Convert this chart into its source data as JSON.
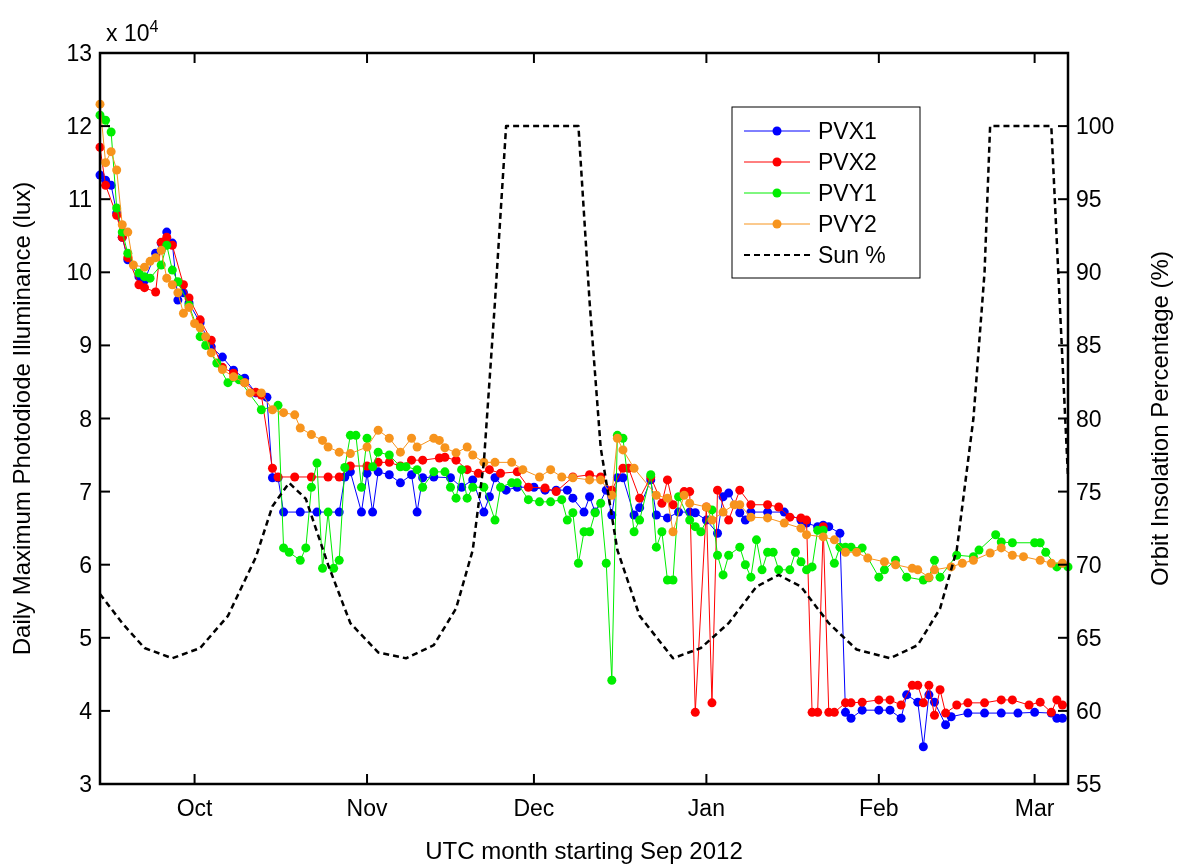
{
  "chart_data": {
    "type": "line",
    "xlabel": "UTC month starting Sep 2012",
    "ylabel": "Daily Maximum Photodiode Illuminance (lux)",
    "y2label": "Orbit Insolation Percentage (%)",
    "annotations": [
      "x 10$^{4}$"
    ],
    "xlim": [
      "2012-09-14",
      "2013-03-07"
    ],
    "xticks": [
      {
        "value": "2012-10-01",
        "label": "Oct"
      },
      {
        "value": "2012-11-01",
        "label": "Nov"
      },
      {
        "value": "2012-12-01",
        "label": "Dec"
      },
      {
        "value": "2013-01-01",
        "label": "Jan"
      },
      {
        "value": "2013-02-01",
        "label": "Feb"
      },
      {
        "value": "2013-03-01",
        "label": "Mar"
      }
    ],
    "ylim": [
      3,
      13
    ],
    "yticks": [
      3,
      4,
      5,
      6,
      7,
      8,
      9,
      10,
      11,
      12,
      13
    ],
    "y2lim": [
      55,
      105
    ],
    "y2ticks": [
      55,
      60,
      65,
      70,
      75,
      80,
      85,
      90,
      95,
      100
    ],
    "marker": "circle",
    "legend": "top right",
    "series": [
      {
        "name": "PVX1",
        "color": "#0000ff",
        "x": [
          "2012-09-14",
          "2012-09-15",
          "2012-09-16",
          "2012-09-17",
          "2012-09-18",
          "2012-09-19",
          "2012-09-21",
          "2012-09-22",
          "2012-09-24",
          "2012-09-25",
          "2012-09-26",
          "2012-09-27",
          "2012-09-28",
          "2012-09-29",
          "2012-09-30",
          "2012-10-02",
          "2012-10-04",
          "2012-10-06",
          "2012-10-08",
          "2012-10-10",
          "2012-10-12",
          "2012-10-14",
          "2012-10-15",
          "2012-10-16",
          "2012-10-17",
          "2012-10-20",
          "2012-10-23",
          "2012-10-27",
          "2012-10-28",
          "2012-10-29",
          "2012-10-31",
          "2012-11-01",
          "2012-11-02",
          "2012-11-03",
          "2012-11-05",
          "2012-11-07",
          "2012-11-09",
          "2012-11-10",
          "2012-11-11",
          "2012-11-13",
          "2012-11-16",
          "2012-11-18",
          "2012-11-20",
          "2012-11-22",
          "2012-11-23",
          "2012-11-24",
          "2012-11-26",
          "2012-11-28",
          "2012-12-01",
          "2012-12-03",
          "2012-12-05",
          "2012-12-07",
          "2012-12-08",
          "2012-12-10",
          "2012-12-11",
          "2012-12-12",
          "2012-12-14",
          "2012-12-15",
          "2012-12-16",
          "2012-12-17",
          "2012-12-19",
          "2012-12-20",
          "2012-12-22",
          "2012-12-23",
          "2012-12-25",
          "2012-12-27",
          "2012-12-29",
          "2012-12-30",
          "2013-01-01",
          "2013-01-03",
          "2013-01-04",
          "2013-01-05",
          "2013-01-07",
          "2013-01-08",
          "2013-01-09",
          "2013-01-12",
          "2013-01-15",
          "2013-01-18",
          "2013-01-19",
          "2013-01-21",
          "2013-01-22",
          "2013-01-23",
          "2013-01-25",
          "2013-01-26",
          "2013-01-27",
          "2013-01-29",
          "2013-02-01",
          "2013-02-03",
          "2013-02-05",
          "2013-02-06",
          "2013-02-08",
          "2013-02-09",
          "2013-02-10",
          "2013-02-11",
          "2013-02-13",
          "2013-02-14",
          "2013-02-17",
          "2013-02-20",
          "2013-02-23",
          "2013-02-26",
          "2013-03-01",
          "2013-03-04",
          "2013-03-05",
          "2013-03-06"
        ],
        "values": [
          11.33,
          11.26,
          11.19,
          10.81,
          10.48,
          10.17,
          9.94,
          9.89,
          10.26,
          10.4,
          10.55,
          10.4,
          9.62,
          9.72,
          9.58,
          9.31,
          8.98,
          8.84,
          8.66,
          8.55,
          8.35,
          8.29,
          7.19,
          7.19,
          6.72,
          6.72,
          6.72,
          6.72,
          7.2,
          7.27,
          6.72,
          7.25,
          6.72,
          7.27,
          7.23,
          7.12,
          7.23,
          6.72,
          7.19,
          7.2,
          7.19,
          7.06,
          7.16,
          6.72,
          6.93,
          7.19,
          7.02,
          7.06,
          7.06,
          7.02,
          7.02,
          7.02,
          6.91,
          6.72,
          6.93,
          6.72,
          7.02,
          6.68,
          7.19,
          7.19,
          6.68,
          6.78,
          7.16,
          6.68,
          6.64,
          6.72,
          6.72,
          6.71,
          6.61,
          6.43,
          6.93,
          6.98,
          6.71,
          6.61,
          6.72,
          6.72,
          6.72,
          6.61,
          6.57,
          6.52,
          6.54,
          6.52,
          6.43,
          3.98,
          3.9,
          4.01,
          4.01,
          4.01,
          3.9,
          4.22,
          4.12,
          3.51,
          4.22,
          4.12,
          3.81,
          3.92,
          3.97,
          3.97,
          3.97,
          3.97,
          3.98,
          3.97,
          3.9,
          3.9
        ]
      },
      {
        "name": "PVX2",
        "color": "#ff0000",
        "x": [
          "2012-09-14",
          "2012-09-15",
          "2012-09-17",
          "2012-09-18",
          "2012-09-19",
          "2012-09-21",
          "2012-09-22",
          "2012-09-24",
          "2012-09-25",
          "2012-09-26",
          "2012-09-27",
          "2012-09-29",
          "2012-09-30",
          "2012-10-02",
          "2012-10-04",
          "2012-10-06",
          "2012-10-08",
          "2012-10-10",
          "2012-10-12",
          "2012-10-13",
          "2012-10-15",
          "2012-10-16",
          "2012-10-19",
          "2012-10-22",
          "2012-10-25",
          "2012-10-27",
          "2012-10-29",
          "2012-11-01",
          "2012-11-03",
          "2012-11-05",
          "2012-11-07",
          "2012-11-09",
          "2012-11-11",
          "2012-11-14",
          "2012-11-15",
          "2012-11-17",
          "2012-11-19",
          "2012-11-21",
          "2012-11-23",
          "2012-11-25",
          "2012-11-28",
          "2012-11-30",
          "2012-12-03",
          "2012-12-05",
          "2012-12-08",
          "2012-12-11",
          "2012-12-13",
          "2012-12-15",
          "2012-12-17",
          "2012-12-18",
          "2012-12-20",
          "2012-12-22",
          "2012-12-24",
          "2012-12-25",
          "2012-12-26",
          "2012-12-28",
          "2012-12-29",
          "2012-12-30",
          "2013-01-01",
          "2013-01-02",
          "2013-01-03",
          "2013-01-05",
          "2013-01-07",
          "2013-01-09",
          "2013-01-12",
          "2013-01-14",
          "2013-01-16",
          "2013-01-18",
          "2013-01-19",
          "2013-01-20",
          "2013-01-21",
          "2013-01-22",
          "2013-01-23",
          "2013-01-24",
          "2013-01-26",
          "2013-01-27",
          "2013-01-29",
          "2013-02-01",
          "2013-02-03",
          "2013-02-05",
          "2013-02-07",
          "2013-02-08",
          "2013-02-09",
          "2013-02-10",
          "2013-02-11",
          "2013-02-12",
          "2013-02-13",
          "2013-02-15",
          "2013-02-17",
          "2013-02-20",
          "2013-02-23",
          "2013-02-25",
          "2013-02-28",
          "2013-03-02",
          "2013-03-04",
          "2013-03-05",
          "2013-03-06"
        ],
        "values": [
          11.71,
          11.19,
          10.78,
          10.48,
          10.2,
          9.83,
          9.79,
          9.73,
          10.41,
          10.48,
          10.37,
          9.83,
          9.65,
          9.35,
          9.07,
          8.7,
          8.62,
          8.49,
          8.36,
          8.32,
          7.32,
          7.2,
          7.2,
          7.2,
          7.2,
          7.2,
          7.35,
          7.35,
          7.4,
          7.4,
          7.35,
          7.43,
          7.43,
          7.46,
          7.47,
          7.43,
          7.3,
          7.25,
          7.3,
          7.25,
          7.27,
          7.06,
          7.05,
          7.0,
          7.2,
          7.23,
          7.2,
          7.02,
          7.32,
          7.32,
          6.91,
          7.2,
          6.84,
          7.16,
          6.82,
          7.0,
          7.0,
          3.98,
          6.79,
          4.11,
          7.02,
          6.61,
          7.02,
          6.82,
          6.82,
          6.79,
          6.65,
          6.64,
          6.61,
          3.98,
          3.98,
          6.52,
          3.98,
          3.98,
          4.11,
          4.11,
          4.12,
          4.15,
          4.15,
          4.08,
          4.35,
          4.35,
          4.11,
          4.35,
          3.94,
          4.29,
          3.97,
          4.08,
          4.11,
          4.11,
          4.15,
          4.15,
          4.08,
          4.12,
          3.98,
          4.15,
          4.08
        ]
      },
      {
        "name": "PVY1",
        "color": "#00ee00",
        "x": [
          "2012-09-14",
          "2012-09-15",
          "2012-09-16",
          "2012-09-17",
          "2012-09-18",
          "2012-09-19",
          "2012-09-21",
          "2012-09-22",
          "2012-09-23",
          "2012-09-25",
          "2012-09-26",
          "2012-09-27",
          "2012-09-28",
          "2012-09-30",
          "2012-10-02",
          "2012-10-03",
          "2012-10-05",
          "2012-10-07",
          "2012-10-09",
          "2012-10-13",
          "2012-10-16",
          "2012-10-17",
          "2012-10-18",
          "2012-10-20",
          "2012-10-21",
          "2012-10-22",
          "2012-10-23",
          "2012-10-24",
          "2012-10-25",
          "2012-10-26",
          "2012-10-27",
          "2012-10-28",
          "2012-10-29",
          "2012-10-30",
          "2012-10-31",
          "2012-11-01",
          "2012-11-02",
          "2012-11-03",
          "2012-11-05",
          "2012-11-07",
          "2012-11-08",
          "2012-11-10",
          "2012-11-11",
          "2012-11-13",
          "2012-11-15",
          "2012-11-16",
          "2012-11-17",
          "2012-11-18",
          "2012-11-19",
          "2012-11-20",
          "2012-11-22",
          "2012-11-24",
          "2012-11-25",
          "2012-11-27",
          "2012-11-28",
          "2012-11-30",
          "2012-12-02",
          "2012-12-04",
          "2012-12-06",
          "2012-12-07",
          "2012-12-08",
          "2012-12-09",
          "2012-12-10",
          "2012-12-11",
          "2012-12-12",
          "2012-12-13",
          "2012-12-14",
          "2012-12-15",
          "2012-12-16",
          "2012-12-17",
          "2012-12-19",
          "2012-12-20",
          "2012-12-22",
          "2012-12-23",
          "2012-12-24",
          "2012-12-25",
          "2012-12-26",
          "2012-12-27",
          "2012-12-29",
          "2012-12-30",
          "2012-12-31",
          "2013-01-02",
          "2013-01-03",
          "2013-01-04",
          "2013-01-05",
          "2013-01-07",
          "2013-01-08",
          "2013-01-09",
          "2013-01-10",
          "2013-01-11",
          "2013-01-12",
          "2013-01-13",
          "2013-01-14",
          "2013-01-16",
          "2013-01-17",
          "2013-01-18",
          "2013-01-19",
          "2013-01-20",
          "2013-01-21",
          "2013-01-22",
          "2013-01-24",
          "2013-01-25",
          "2013-01-26",
          "2013-01-27",
          "2013-01-29",
          "2013-02-01",
          "2013-02-02",
          "2013-02-04",
          "2013-02-06",
          "2013-02-09",
          "2013-02-10",
          "2013-02-11",
          "2013-02-12",
          "2013-02-15",
          "2013-02-18",
          "2013-02-19",
          "2013-02-22",
          "2013-02-23",
          "2013-02-25",
          "2013-03-01",
          "2013-03-02",
          "2013-03-03",
          "2013-03-05",
          "2013-03-07"
        ],
        "values": [
          12.15,
          12.08,
          11.92,
          10.88,
          10.55,
          10.26,
          9.99,
          9.94,
          9.92,
          10.1,
          10.37,
          10.03,
          9.87,
          9.55,
          9.12,
          9.0,
          8.76,
          8.49,
          8.53,
          8.12,
          8.18,
          6.23,
          6.17,
          6.06,
          6.23,
          7.06,
          7.39,
          5.95,
          6.72,
          5.95,
          6.06,
          7.33,
          7.77,
          7.77,
          7.06,
          7.73,
          7.34,
          7.54,
          7.5,
          7.34,
          7.34,
          7.3,
          7.06,
          7.27,
          7.27,
          7.06,
          6.91,
          7.3,
          6.91,
          7.06,
          7.06,
          6.61,
          7.06,
          7.12,
          7.12,
          6.89,
          6.86,
          6.86,
          6.89,
          6.61,
          6.71,
          6.02,
          6.45,
          6.45,
          6.71,
          6.84,
          6.02,
          4.42,
          7.77,
          7.73,
          6.45,
          6.61,
          7.23,
          6.24,
          6.45,
          5.79,
          5.79,
          6.93,
          6.61,
          6.52,
          6.45,
          6.75,
          6.13,
          5.86,
          6.13,
          6.24,
          6.0,
          5.83,
          6.34,
          5.93,
          6.17,
          6.17,
          5.93,
          5.93,
          6.17,
          6.04,
          5.93,
          5.97,
          6.47,
          6.47,
          6.02,
          6.24,
          6.24,
          6.24,
          6.23,
          5.83,
          5.93,
          6.06,
          5.83,
          5.79,
          5.82,
          6.06,
          5.83,
          6.13,
          6.11,
          6.2,
          6.41,
          6.31,
          6.3,
          6.3,
          6.3,
          6.17,
          5.97,
          5.97
        ]
      },
      {
        "name": "PVY2",
        "color": "#f7941d",
        "x": [
          "2012-09-14",
          "2012-09-15",
          "2012-09-16",
          "2012-09-17",
          "2012-09-18",
          "2012-09-19",
          "2012-09-20",
          "2012-09-22",
          "2012-09-23",
          "2012-09-24",
          "2012-09-25",
          "2012-09-26",
          "2012-09-27",
          "2012-09-28",
          "2012-09-29",
          "2012-09-30",
          "2012-10-01",
          "2012-10-02",
          "2012-10-03",
          "2012-10-04",
          "2012-10-06",
          "2012-10-08",
          "2012-10-10",
          "2012-10-11",
          "2012-10-13",
          "2012-10-15",
          "2012-10-17",
          "2012-10-19",
          "2012-10-20",
          "2012-10-22",
          "2012-10-24",
          "2012-10-25",
          "2012-10-27",
          "2012-10-29",
          "2012-11-01",
          "2012-11-03",
          "2012-11-05",
          "2012-11-07",
          "2012-11-09",
          "2012-11-10",
          "2012-11-13",
          "2012-11-14",
          "2012-11-15",
          "2012-11-17",
          "2012-11-19",
          "2012-11-20",
          "2012-11-22",
          "2012-11-24",
          "2012-11-27",
          "2012-11-29",
          "2012-12-02",
          "2012-12-04",
          "2012-12-06",
          "2012-12-08",
          "2012-12-11",
          "2012-12-13",
          "2012-12-15",
          "2012-12-16",
          "2012-12-17",
          "2012-12-19",
          "2012-12-23",
          "2012-12-25",
          "2012-12-26",
          "2012-12-28",
          "2012-12-29",
          "2013-01-01",
          "2013-01-02",
          "2013-01-04",
          "2013-01-06",
          "2013-01-07",
          "2013-01-09",
          "2013-01-12",
          "2013-01-15",
          "2013-01-18",
          "2013-01-19",
          "2013-01-22",
          "2013-01-24",
          "2013-01-26",
          "2013-01-28",
          "2013-01-30",
          "2013-02-02",
          "2013-02-04",
          "2013-02-07",
          "2013-02-08",
          "2013-02-10",
          "2013-02-11",
          "2013-02-14",
          "2013-02-16",
          "2013-02-18",
          "2013-02-21",
          "2013-02-23",
          "2013-02-25",
          "2013-02-27",
          "2013-03-02",
          "2013-03-04",
          "2013-03-06"
        ],
        "values": [
          12.3,
          11.5,
          11.65,
          11.4,
          10.65,
          10.55,
          10.1,
          10.07,
          10.15,
          10.2,
          10.3,
          9.92,
          9.83,
          9.72,
          9.44,
          9.52,
          9.3,
          9.24,
          9.12,
          8.9,
          8.67,
          8.57,
          8.49,
          8.35,
          8.35,
          8.12,
          8.08,
          8.05,
          7.87,
          7.78,
          7.7,
          7.61,
          7.54,
          7.52,
          7.61,
          7.84,
          7.73,
          7.54,
          7.73,
          7.61,
          7.73,
          7.7,
          7.6,
          7.53,
          7.61,
          7.5,
          7.4,
          7.4,
          7.4,
          7.3,
          7.2,
          7.3,
          7.2,
          7.19,
          7.16,
          7.16,
          6.95,
          7.73,
          7.57,
          7.32,
          6.95,
          6.91,
          6.45,
          6.95,
          6.84,
          6.79,
          6.61,
          6.72,
          6.82,
          6.82,
          6.65,
          6.64,
          6.57,
          6.5,
          6.41,
          6.38,
          6.34,
          6.17,
          6.17,
          6.09,
          6.04,
          6.0,
          5.95,
          5.93,
          5.83,
          5.93,
          5.97,
          6.02,
          6.06,
          6.16,
          6.23,
          6.13,
          6.11,
          6.06,
          6.02,
          6.02
        ]
      },
      {
        "name": "Sun %",
        "color": "#000000",
        "axis": "y2",
        "marker": "none",
        "line_style": "dashed",
        "x": [
          "2012-09-14",
          "2012-09-18",
          "2012-09-22",
          "2012-09-27",
          "2012-10-02",
          "2012-10-07",
          "2012-10-12",
          "2012-10-15",
          "2012-10-18",
          "2012-10-21",
          "2012-10-25",
          "2012-10-29",
          "2012-11-03",
          "2012-11-08",
          "2012-11-13",
          "2012-11-17",
          "2012-11-20",
          "2012-11-22",
          "2012-11-24",
          "2012-11-26",
          "2012-12-09",
          "2012-12-11",
          "2012-12-13",
          "2012-12-16",
          "2012-12-20",
          "2012-12-26",
          "2012-12-31",
          "2013-01-05",
          "2013-01-10",
          "2013-01-14",
          "2013-01-18",
          "2013-01-23",
          "2013-01-28",
          "2013-02-03",
          "2013-02-08",
          "2013-02-12",
          "2013-02-15",
          "2013-02-18",
          "2013-02-20",
          "2013-02-21",
          "2013-03-04",
          "2013-03-05",
          "2013-03-07"
        ],
        "values": [
          68,
          66,
          64.3,
          63.6,
          64.3,
          66.5,
          70.5,
          74,
          75.6,
          74.5,
          70,
          66,
          64,
          63.6,
          64.5,
          67,
          71,
          77,
          88,
          100,
          100,
          88,
          78,
          71,
          66.5,
          63.6,
          64.3,
          66,
          68.5,
          69.3,
          68.5,
          66,
          64.2,
          63.6,
          64.5,
          67,
          71,
          80,
          90,
          100,
          100,
          92,
          76
        ]
      }
    ]
  }
}
